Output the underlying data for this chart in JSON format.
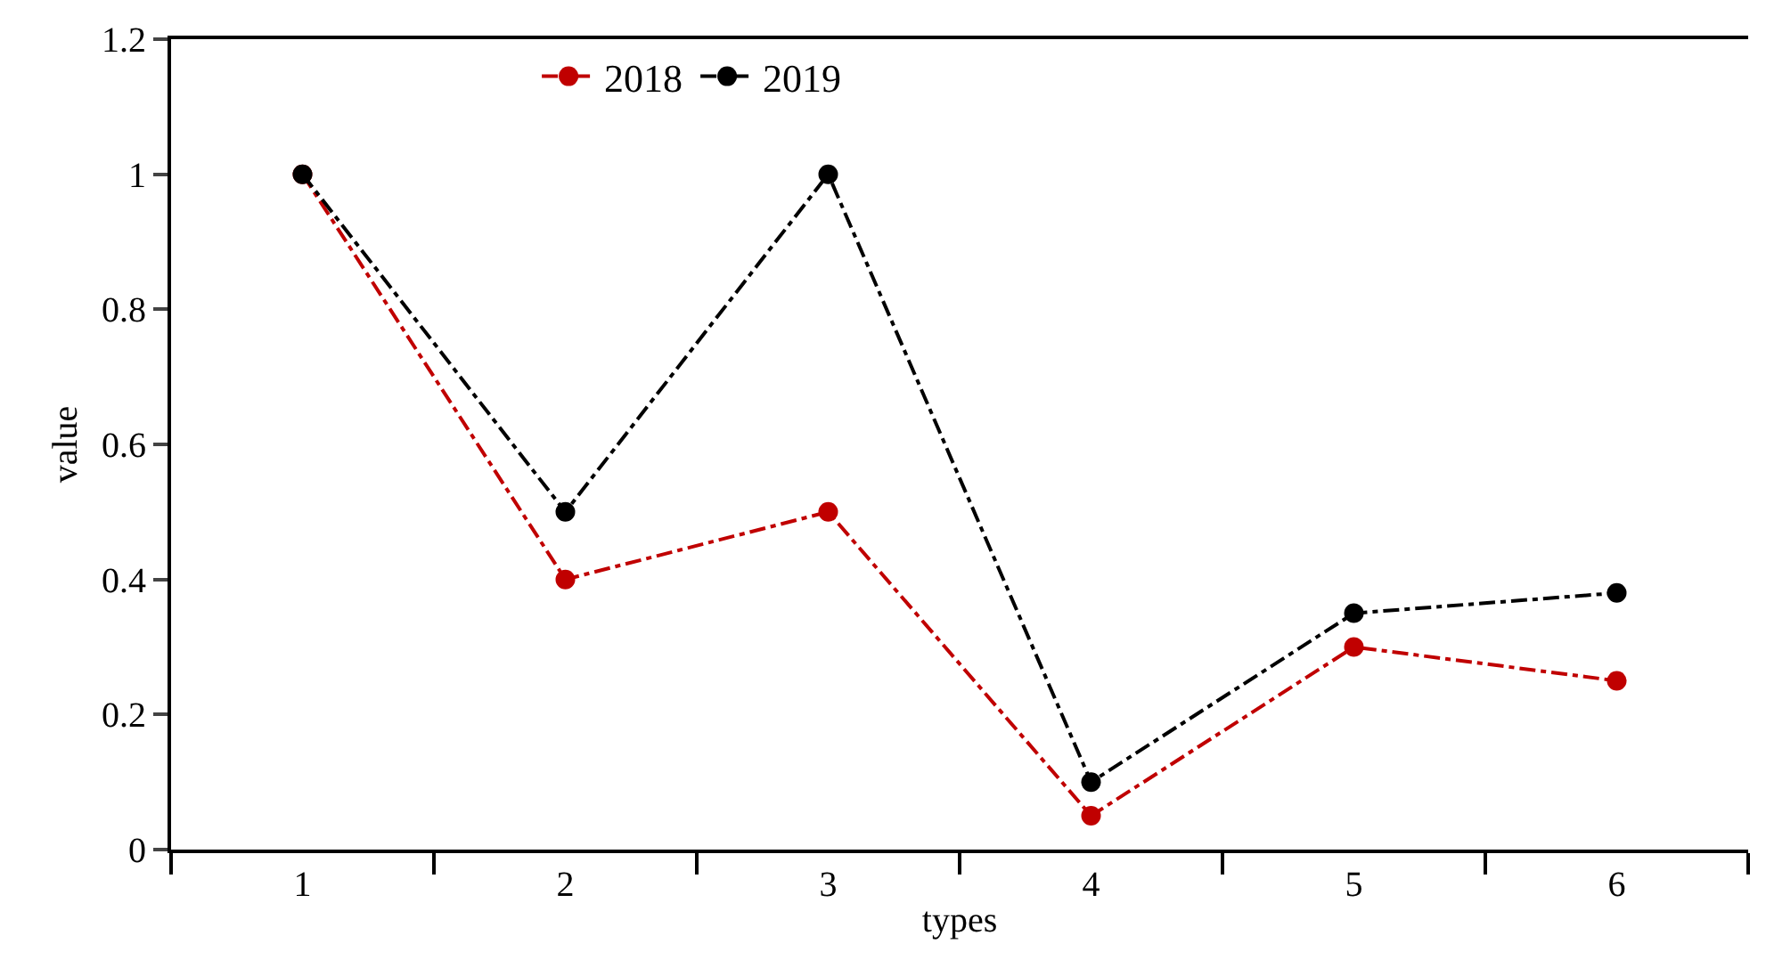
{
  "chart_data": {
    "type": "line",
    "xlabel": "types",
    "ylabel": "value",
    "categories": [
      "1",
      "2",
      "3",
      "4",
      "5",
      "6"
    ],
    "ylim": [
      0,
      1.2
    ],
    "yticks": [
      0,
      0.2,
      0.4,
      0.6,
      0.8,
      1,
      1.2
    ],
    "series": [
      {
        "name": "2018",
        "color": "#c00000",
        "values": [
          1,
          0.4,
          0.5,
          0.05,
          0.3,
          0.25
        ]
      },
      {
        "name": "2019",
        "color": "#000000",
        "values": [
          1,
          0.5,
          1,
          0.1,
          0.35,
          0.38
        ]
      }
    ],
    "marker": "circle",
    "line_style": "dashed",
    "legend": "top"
  }
}
